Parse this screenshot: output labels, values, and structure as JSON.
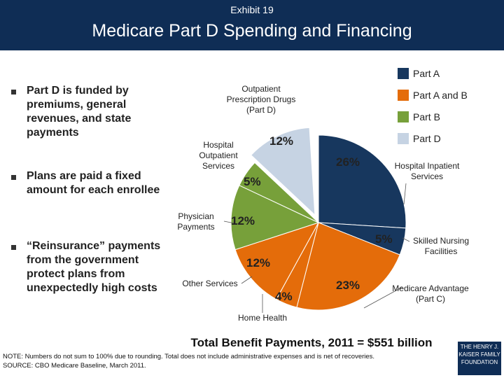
{
  "header": {
    "exhibit": "Exhibit 19"
  },
  "bullets": [
    "Part D is funded by premiums, general revenues, and state payments",
    "Plans are paid a fixed amount for each enrollee",
    "“Reinsurance” payments from the government protect plans from unexpectedly high costs"
  ],
  "chart_data": {
    "type": "pie",
    "title": "Medicare Part D Spending and Financing",
    "categories": [
      "Hospital Inpatient Services",
      "Skilled Nursing Facilities",
      "Medicare Advantage (Part C)",
      "Home Health",
      "Other Services",
      "Physician Payments",
      "Hospital Outpatient Services",
      "Outpatient Prescription Drugs (Part D)"
    ],
    "values": [
      26,
      5,
      23,
      4,
      12,
      12,
      5,
      12
    ],
    "value_labels": [
      "26%",
      "5%",
      "23%",
      "4%",
      "12%",
      "12%",
      "5%",
      "12%"
    ],
    "colors": [
      "#17375e",
      "#17375e",
      "#e46c0a",
      "#e46c0a",
      "#e46c0a",
      "#77a03a",
      "#77a03a",
      "#c6d3e3"
    ],
    "legend": [
      {
        "name": "Part A",
        "color": "#17375e"
      },
      {
        "name": "Part A and B",
        "color": "#e46c0a"
      },
      {
        "name": "Part B",
        "color": "#77a03a"
      },
      {
        "name": "Part D",
        "color": "#c6d3e3"
      }
    ],
    "caption": "Total Benefit Payments, 2011 = $551 billion"
  },
  "footer": {
    "note": "NOTE: Numbers do not sum to 100% due to rounding. Total does not include administrative expenses and is net of recoveries.",
    "source": "SOURCE: CBO Medicare Baseline, March 2011.",
    "logo": "THE HENRY J. KAISER FAMILY FOUNDATION"
  }
}
